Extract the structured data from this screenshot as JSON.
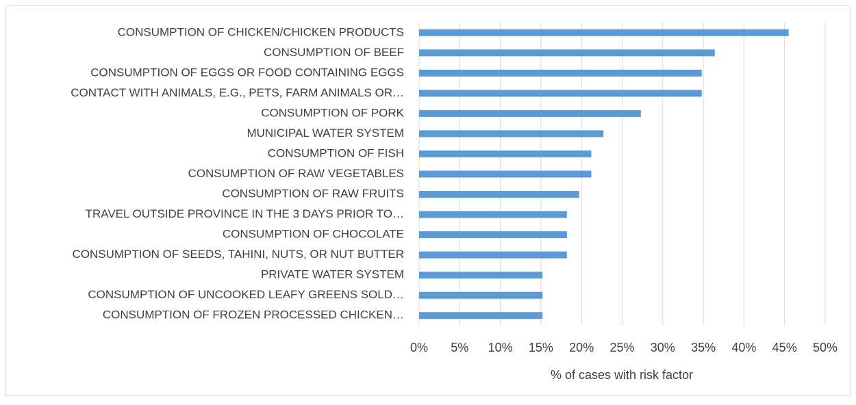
{
  "chart_data": {
    "type": "bar",
    "orientation": "horizontal",
    "categories": [
      "CONSUMPTION OF CHICKEN/CHICKEN PRODUCTS",
      "CONSUMPTION OF BEEF",
      "CONSUMPTION OF EGGS OR FOOD CONTAINING EGGS",
      "CONTACT WITH ANIMALS, E.G., PETS, FARM ANIMALS OR…",
      "CONSUMPTION OF PORK",
      "MUNICIPAL WATER SYSTEM",
      "CONSUMPTION OF FISH",
      "CONSUMPTION OF RAW VEGETABLES",
      "CONSUMPTION OF RAW FRUITS",
      "TRAVEL OUTSIDE PROVINCE IN THE 3 DAYS PRIOR TO…",
      "CONSUMPTION OF CHOCOLATE",
      "CONSUMPTION OF SEEDS, TAHINI, NUTS, OR NUT BUTTER",
      "PRIVATE WATER SYSTEM",
      "CONSUMPTION OF UNCOOKED LEAFY GREENS SOLD…",
      "CONSUMPTION OF FROZEN PROCESSED CHICKEN…"
    ],
    "values": [
      45.5,
      36.4,
      34.8,
      34.8,
      27.3,
      22.7,
      21.2,
      21.2,
      19.7,
      18.2,
      18.2,
      18.2,
      15.2,
      15.2,
      15.2
    ],
    "color": "#5b9bd5",
    "xlabel": "% of cases with risk factor",
    "xlim": [
      0,
      50
    ],
    "xticks": [
      {
        "value": 0,
        "label": "0%"
      },
      {
        "value": 5,
        "label": "5%"
      },
      {
        "value": 10,
        "label": "10%"
      },
      {
        "value": 15,
        "label": "15%"
      },
      {
        "value": 20,
        "label": "20%"
      },
      {
        "value": 25,
        "label": "25%"
      },
      {
        "value": 30,
        "label": "30%"
      },
      {
        "value": 35,
        "label": "35%"
      },
      {
        "value": 40,
        "label": "40%"
      },
      {
        "value": 45,
        "label": "45%"
      },
      {
        "value": 50,
        "label": "50%"
      }
    ],
    "grid": true
  }
}
